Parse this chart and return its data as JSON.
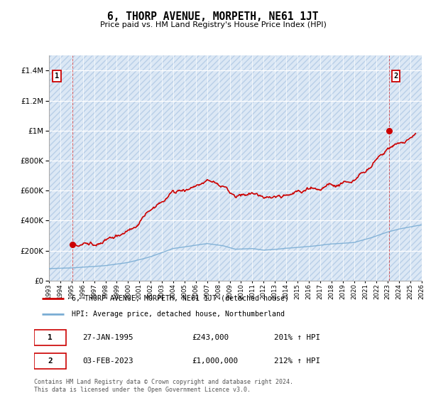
{
  "title": "6, THORP AVENUE, MORPETH, NE61 1JT",
  "subtitle": "Price paid vs. HM Land Registry's House Price Index (HPI)",
  "hpi_label": "HPI: Average price, detached house, Northumberland",
  "property_label": "6, THORP AVENUE, MORPETH, NE61 1JT (detached house)",
  "sale1_date": "27-JAN-1995",
  "sale1_price": 243000,
  "sale1_hpi": "201% ↑ HPI",
  "sale2_date": "03-FEB-2023",
  "sale2_price": 1000000,
  "sale2_hpi": "212% ↑ HPI",
  "footnote": "Contains HM Land Registry data © Crown copyright and database right 2024.\nThis data is licensed under the Open Government Licence v3.0.",
  "ylim_max": 1500000,
  "plot_bg": "#dce8f5",
  "red_color": "#cc0000",
  "blue_color": "#7aadd4",
  "sale1_year": 1995.07,
  "sale2_year": 2023.09,
  "xmin": 1993,
  "xmax": 2026
}
